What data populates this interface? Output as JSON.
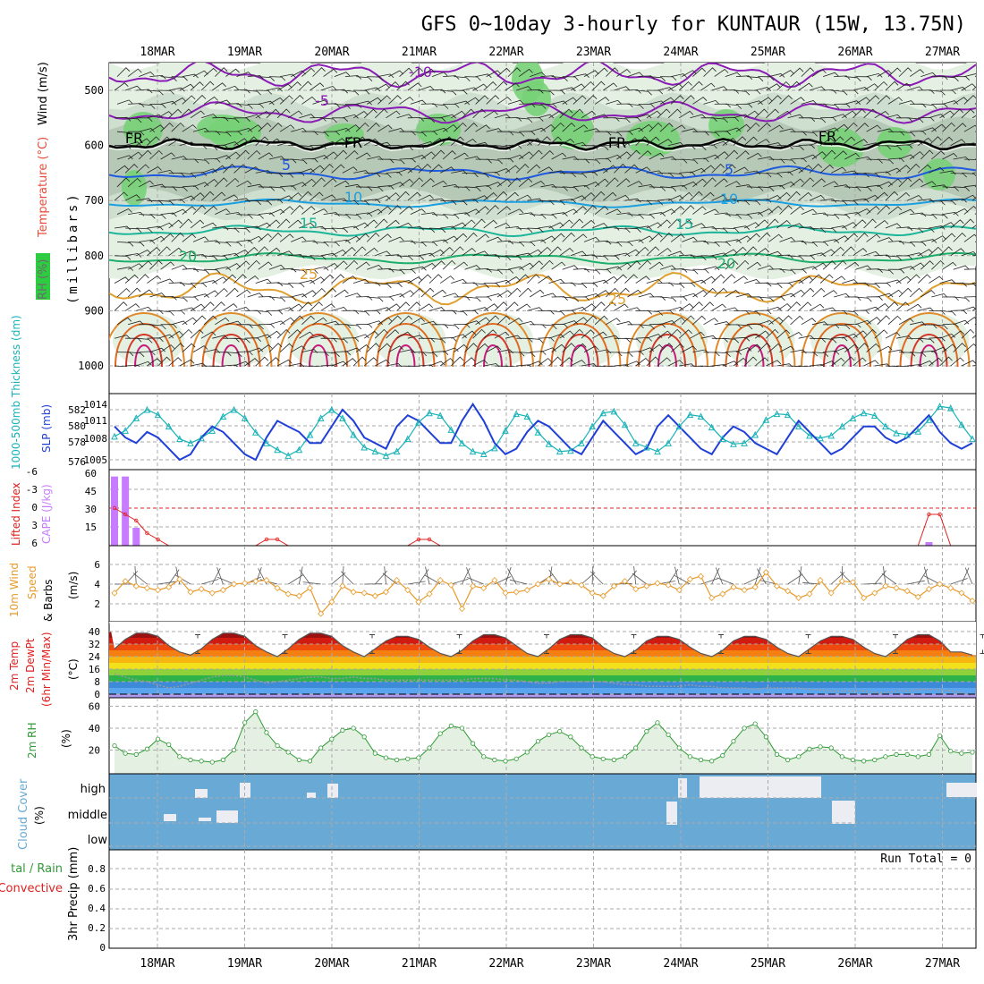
{
  "title": "GFS 0~10day 3-hourly for KUNTAUR (15W, 13.75N)",
  "dates": [
    "18MAR",
    "19MAR",
    "20MAR",
    "21MAR",
    "22MAR",
    "23MAR",
    "24MAR",
    "25MAR",
    "26MAR",
    "27MAR"
  ],
  "colors": {
    "rh_light": "#e4f1e2",
    "rh_mid": "#cfdfcf",
    "rh_dark": "#b6c8b6",
    "rh_green": "#77d177",
    "slp": "#1f3fd6",
    "thickness": "#18b3b8",
    "lifted": "#e02020",
    "cape": "#c77bff",
    "wind_speed": "#e89a2a",
    "rh2m_line": "#2f9a35",
    "cloud": "#68aad5",
    "cloud_clear": "#ececf3",
    "grid": "#aaaaaa"
  },
  "panels": {
    "upper": {
      "label_rh": "RH (%)",
      "label_temp": "Temperature (°C)",
      "label_wind": "Wind (m/s)",
      "label_axis": "(millibars)",
      "yticks": [
        "500",
        "600",
        "700",
        "800",
        "900",
        "1000"
      ],
      "contour_labels": [
        "-10",
        "-5",
        "FR",
        "FR",
        "FR",
        "FR",
        "5",
        "5",
        "10",
        "10",
        "15",
        "15",
        "20",
        "20",
        "25",
        "25"
      ]
    },
    "slp": {
      "label_thick": "1000-500mb Thickness (dm)",
      "label_slp": "SLP (mb)",
      "left_ticks": [
        "582",
        "580",
        "578",
        "576"
      ],
      "right_ticks": [
        "1014",
        "1011",
        "1008",
        "1005"
      ]
    },
    "lifted": {
      "label_li": "Lifted Index",
      "label_cape": "CAPE (J/kg)",
      "left_ticks": [
        "-6",
        "-3",
        "0",
        "3",
        "6"
      ],
      "right_ticks": [
        "60",
        "45",
        "30",
        "15"
      ]
    },
    "wind10": {
      "label": "10m Wind",
      "label2": "Speed",
      "label3": "& Barbs",
      "unit": "(m/s)",
      "ticks": [
        "6",
        "4",
        "2"
      ]
    },
    "temp2m": {
      "label1": "2m Temp",
      "label2": "2m DewPt",
      "label3": "(6hr Min/Max)",
      "unit": "(°C)",
      "ticks": [
        "40",
        "32",
        "24",
        "16",
        "8",
        "0"
      ]
    },
    "rh2m": {
      "label": "2m RH",
      "unit": "(%)",
      "ticks": [
        "60",
        "40",
        "20"
      ]
    },
    "cloud": {
      "label": "Cloud Cover",
      "unit": "(%)",
      "levels": [
        "high",
        "middle",
        "low"
      ]
    },
    "precip": {
      "label1": "tal / Rain",
      "label2": "Convective",
      "label3": "3hr Precip (mm)",
      "ticks": [
        "0.8",
        "0.6",
        "0.4",
        "0.2",
        "0"
      ],
      "run_total": "Run Total = 0"
    }
  },
  "chart_data": [
    {
      "type": "line",
      "title": "SLP / 1000-500mb Thickness",
      "series": [
        {
          "name": "SLP (mb)",
          "values": [
            1011,
            1009,
            1008,
            1010,
            1009,
            1007,
            1005,
            1006,
            1009,
            1011,
            1010,
            1008,
            1006,
            1005,
            1009,
            1012,
            1011,
            1010,
            1008,
            1008,
            1011,
            1014,
            1012,
            1009,
            1008,
            1007,
            1011,
            1013,
            1012,
            1010,
            1008,
            1008,
            1012,
            1015,
            1012,
            1008,
            1006,
            1007,
            1010,
            1012,
            1011,
            1009,
            1007,
            1006,
            1009,
            1012,
            1010,
            1008,
            1006,
            1007,
            1011,
            1013,
            1011,
            1009,
            1007,
            1006,
            1009,
            1011,
            1010,
            1008,
            1007,
            1006,
            1009,
            1012,
            1010,
            1008,
            1006,
            1007,
            1009,
            1011,
            1011,
            1009,
            1008,
            1009,
            1011,
            1013,
            1010,
            1008,
            1007,
            1008
          ]
        },
        {
          "name": "1000-500mb Thickness (dm)",
          "values": [
            578.8,
            579.5,
            581,
            582,
            581.4,
            580,
            578.5,
            578,
            578.6,
            579.5,
            581.2,
            582,
            581,
            579.3,
            578,
            577.2,
            576.5,
            577.2,
            579,
            581,
            582,
            581,
            579,
            577.5,
            577,
            576.5,
            577,
            578.5,
            580.5,
            581.6,
            581.3,
            579.6,
            578,
            577,
            576.7,
            577.4,
            579.5,
            581.5,
            581.2,
            579.3,
            577.9,
            577,
            577.1,
            578,
            580,
            581.6,
            581.8,
            580.2,
            578,
            577.5,
            577,
            578,
            580,
            581.4,
            581.2,
            579.9,
            578.5,
            577.9,
            578,
            579,
            580.8,
            581.5,
            581.4,
            580,
            578.9,
            578.6,
            578.9,
            580,
            581,
            581.6,
            581.3,
            580,
            579.2,
            579,
            579.4,
            580.8,
            582.4,
            582.2,
            580.2,
            578.5
          ]
        }
      ]
    },
    {
      "type": "bar",
      "title": "Lifted Index / CAPE",
      "series": [
        {
          "name": "CAPE (J/kg)",
          "values": [
            58,
            58,
            15,
            0,
            0,
            0,
            0,
            0,
            0,
            0,
            0,
            0,
            0,
            0,
            0,
            0,
            0,
            0,
            0,
            0,
            0,
            0,
            0,
            0,
            0,
            0,
            0,
            0,
            0,
            0,
            0,
            0,
            0,
            0,
            0,
            0,
            0,
            0,
            0,
            0,
            0,
            0,
            0,
            0,
            0,
            0,
            0,
            0,
            0,
            0,
            0,
            0,
            0,
            0,
            0,
            0,
            0,
            0,
            0,
            0,
            0,
            0,
            0,
            0,
            0,
            0,
            0,
            0,
            0,
            0,
            0,
            0,
            0,
            0,
            0,
            3,
            0,
            0,
            0,
            0
          ]
        },
        {
          "name": "Lifted Index",
          "values": [
            0,
            1,
            2,
            4,
            5,
            6,
            6,
            6,
            6,
            6,
            6,
            6,
            6,
            6,
            5,
            5,
            6,
            6,
            6,
            6,
            6,
            6,
            6,
            6,
            6,
            6,
            6,
            6,
            5,
            5,
            6,
            6,
            6,
            6,
            6,
            6,
            6,
            6,
            6,
            6,
            6,
            6,
            6,
            6,
            6,
            6,
            6,
            6,
            6,
            6,
            6,
            6,
            6,
            6,
            6,
            6,
            6,
            6,
            6,
            6,
            6,
            6,
            6,
            6,
            6,
            6,
            6,
            6,
            6,
            6,
            6,
            6,
            6,
            6,
            6,
            1,
            1,
            6,
            6,
            6
          ]
        }
      ]
    },
    {
      "type": "line",
      "title": "10m Wind Speed",
      "series": [
        {
          "name": "10m Wind Speed (m/s)",
          "values": [
            3.1,
            4.3,
            3.8,
            3.6,
            3.4,
            3.7,
            4.5,
            3.2,
            3.5,
            3.1,
            3.4,
            4.0,
            4.1,
            4.3,
            4.4,
            3.6,
            3.0,
            2.8,
            3.6,
            1.0,
            2.2,
            3.8,
            3.2,
            3.1,
            2.8,
            3.2,
            4.4,
            3.4,
            2.2,
            3.0,
            4.4,
            3.9,
            1.5,
            3.8,
            3.6,
            4.4,
            3.1,
            3.2,
            3.4,
            4.0,
            4.5,
            4.0,
            4.2,
            3.9,
            3.1,
            2.8,
            3.8,
            4.3,
            3.5,
            3.8,
            4.1,
            3.9,
            3.4,
            4.5,
            4.8,
            2.6,
            3.0,
            3.7,
            3.4,
            3.7,
            5.2,
            3.8,
            3.3,
            2.6,
            3.0,
            4.4,
            3.1,
            4.3,
            4.2,
            2.6,
            3.1,
            3.8,
            3.6,
            3.3,
            2.7,
            3.5,
            4.0,
            3.6,
            3.1,
            2.3
          ]
        }
      ]
    },
    {
      "type": "area",
      "title": "2m Temp / 2m DewPt",
      "series": [
        {
          "name": "2m Temp (°C)",
          "values": [
            29,
            35,
            39,
            39,
            37,
            31,
            27,
            25,
            29,
            35,
            39,
            39,
            37,
            31,
            27,
            24,
            29,
            35,
            39,
            39,
            37,
            31,
            27,
            24,
            29,
            34,
            37,
            37,
            35,
            30,
            26,
            24,
            28,
            34,
            38,
            38,
            36,
            31,
            26,
            24,
            29,
            35,
            38,
            38,
            36,
            30,
            26,
            24,
            28,
            34,
            37,
            37,
            35,
            30,
            26,
            24,
            28,
            34,
            37,
            37,
            35,
            30,
            26,
            24,
            29,
            34,
            37,
            37,
            35,
            30,
            26,
            24,
            29,
            35,
            38,
            38,
            34,
            27,
            27,
            25
          ]
        },
        {
          "name": "2m DewPt (°C)",
          "values": [
            13,
            11,
            9,
            8,
            6,
            4,
            5,
            7,
            9,
            11,
            12,
            12,
            11,
            9,
            7,
            8,
            9,
            10,
            11,
            11,
            10,
            10,
            11,
            10,
            10,
            9,
            9,
            9,
            9,
            9,
            9,
            9,
            9,
            10,
            10,
            10,
            9,
            9,
            8,
            7,
            7,
            8,
            8,
            8,
            8,
            8,
            7,
            6,
            6,
            5,
            5,
            5,
            5,
            6,
            5,
            5,
            4,
            4,
            4,
            3,
            4,
            4,
            4,
            4,
            3,
            3,
            2,
            2,
            2,
            2,
            1,
            1,
            2,
            2,
            3,
            3,
            3,
            2,
            1,
            -1
          ]
        }
      ]
    },
    {
      "type": "line",
      "title": "2m RH",
      "series": [
        {
          "name": "2m RH (%)",
          "values": [
            24,
            17,
            16,
            21,
            30,
            25,
            14,
            11,
            10,
            9,
            11,
            20,
            45,
            55,
            36,
            24,
            18,
            11,
            10,
            22,
            30,
            38,
            40,
            32,
            17,
            13,
            11,
            12,
            13,
            22,
            35,
            42,
            40,
            26,
            14,
            11,
            10,
            12,
            18,
            28,
            34,
            37,
            32,
            22,
            14,
            12,
            11,
            14,
            22,
            37,
            45,
            34,
            22,
            14,
            11,
            10,
            15,
            28,
            40,
            44,
            32,
            16,
            11,
            14,
            21,
            23,
            22,
            14,
            11,
            10,
            11,
            14,
            16,
            16,
            14,
            16,
            33,
            19,
            17,
            18
          ]
        }
      ]
    },
    {
      "type": "table",
      "title": "Cloud Cover",
      "categories": [
        "high",
        "middle",
        "low"
      ]
    },
    {
      "type": "bar",
      "title": "3hr Precip (mm)",
      "ylim": [
        0,
        1
      ],
      "values": [
        0,
        0,
        0,
        0,
        0,
        0,
        0,
        0,
        0,
        0,
        0,
        0,
        0,
        0,
        0,
        0,
        0,
        0,
        0,
        0,
        0,
        0,
        0,
        0,
        0,
        0,
        0,
        0,
        0,
        0,
        0,
        0,
        0,
        0,
        0,
        0,
        0,
        0,
        0,
        0,
        0,
        0,
        0,
        0,
        0,
        0,
        0,
        0,
        0,
        0,
        0,
        0,
        0,
        0,
        0,
        0,
        0,
        0,
        0,
        0,
        0,
        0,
        0,
        0,
        0,
        0,
        0,
        0,
        0,
        0,
        0,
        0,
        0,
        0,
        0,
        0,
        0,
        0,
        0,
        0
      ]
    }
  ]
}
